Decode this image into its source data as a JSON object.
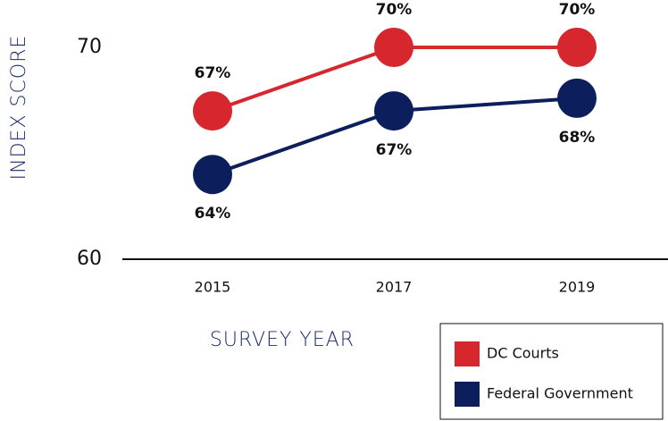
{
  "chart_data": {
    "type": "line",
    "xlabel": "SURVEY YEAR",
    "ylabel": "INDEX SCORE",
    "categories": [
      "2015",
      "2017",
      "2019"
    ],
    "series": [
      {
        "name": "DC Courts",
        "color": "#d6262e",
        "values": [
          67,
          70,
          70
        ],
        "value_labels": [
          "67%",
          "70%",
          "70%"
        ]
      },
      {
        "name": "Federal Government",
        "color": "#0c1f5c",
        "values": [
          64,
          67,
          67.6
        ],
        "value_labels": [
          "64%",
          "67%",
          "68%"
        ]
      }
    ],
    "ylim": [
      60,
      72
    ],
    "yticks": [
      60,
      70
    ]
  }
}
